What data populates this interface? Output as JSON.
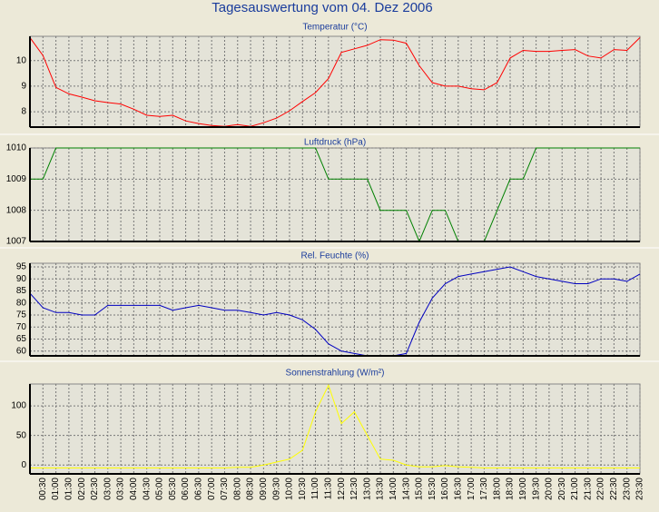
{
  "title": "Tagesauswertung vom 04. Dez 2006",
  "chart_data": [
    {
      "type": "line",
      "title": "Temperatur (°C)",
      "color": "#ff0000",
      "ylim": [
        7.4,
        10.95
      ],
      "yticks": [
        8,
        9,
        10
      ],
      "grid": true,
      "values": [
        10.9,
        10.2,
        8.95,
        8.7,
        8.57,
        8.43,
        8.36,
        8.3,
        8.1,
        7.86,
        7.82,
        7.86,
        7.64,
        7.54,
        7.46,
        7.43,
        7.5,
        7.43,
        7.57,
        7.75,
        8.04,
        8.4,
        8.75,
        9.3,
        10.32,
        10.46,
        10.6,
        10.82,
        10.8,
        10.68,
        9.8,
        9.14,
        9.0,
        9.0,
        8.9,
        8.86,
        9.14,
        10.1,
        10.4,
        10.36,
        10.36,
        10.4,
        10.43,
        10.18,
        10.1,
        10.43,
        10.4,
        10.9
      ]
    },
    {
      "type": "line",
      "title": "Luftdruck (hPa)",
      "color": "#008000",
      "ylim": [
        1007,
        1010
      ],
      "yticks": [
        1007,
        1008,
        1009,
        1010
      ],
      "grid": true,
      "values": [
        1009,
        1009,
        1010,
        1010,
        1010,
        1010,
        1010,
        1010,
        1010,
        1010,
        1010,
        1010,
        1010,
        1010,
        1010,
        1010,
        1010,
        1010,
        1010,
        1010,
        1010,
        1010,
        1010,
        1009,
        1009,
        1009,
        1009,
        1008,
        1008,
        1008,
        1007,
        1008,
        1008,
        1007,
        1007,
        1007,
        1008,
        1009,
        1009,
        1010,
        1010,
        1010,
        1010,
        1010,
        1010,
        1010,
        1010,
        1010
      ]
    },
    {
      "type": "line",
      "title": "Rel. Feuchte (%)",
      "color": "#0000c0",
      "ylim": [
        58,
        96.5
      ],
      "yticks": [
        60,
        65,
        70,
        75,
        80,
        85,
        90,
        95
      ],
      "grid": true,
      "values": [
        84,
        78,
        76,
        76,
        75,
        75,
        79,
        79,
        79,
        79,
        79,
        77,
        78,
        79,
        78,
        77,
        77,
        76,
        75,
        76,
        75,
        73,
        69,
        63,
        60,
        59,
        58,
        58,
        58,
        59,
        72,
        82,
        88,
        91,
        92,
        93,
        94,
        95,
        93,
        91,
        90,
        89,
        88,
        88,
        90,
        90,
        89,
        92
      ]
    },
    {
      "type": "line",
      "title": "Sonnenstrahlung (W/m²)",
      "color": "#ffff00",
      "ylim": [
        -15,
        137
      ],
      "yticks": [
        0,
        50,
        100
      ],
      "grid": true,
      "values": [
        -5,
        -5,
        -5,
        -5,
        -5,
        -5,
        -5,
        -5,
        -5,
        -5,
        -5,
        -5,
        -5,
        -5,
        -5,
        -5,
        -4,
        -4,
        0,
        5,
        10,
        25,
        90,
        135,
        70,
        90,
        50,
        10,
        8,
        0,
        -3,
        -3,
        -1,
        -3,
        -4,
        -5,
        -5,
        -5,
        -5,
        -5,
        -5,
        -5,
        -5,
        -5,
        -5,
        -5,
        -5,
        -5
      ],
      "categories": [
        null,
        "00:30",
        "01:00",
        "01:30",
        "02:00",
        "02:30",
        "03:00",
        "03:30",
        "04:00",
        "04:30",
        "05:00",
        "05:30",
        "06:00",
        "06:30",
        "07:00",
        "07:30",
        "08:00",
        "08:30",
        "09:00",
        "09:30",
        "10:00",
        "10:30",
        "11:00",
        "11:30",
        "12:00",
        "12:30",
        "13:00",
        "13:30",
        "14:00",
        "14:30",
        "15:00",
        "15:30",
        "16:00",
        "16:30",
        "17:00",
        "17:30",
        "18:00",
        "18:30",
        "19:00",
        "19:30",
        "20:00",
        "20:30",
        "21:00",
        "21:30",
        "22:00",
        "22:30",
        "23:00",
        "23:30"
      ]
    }
  ]
}
